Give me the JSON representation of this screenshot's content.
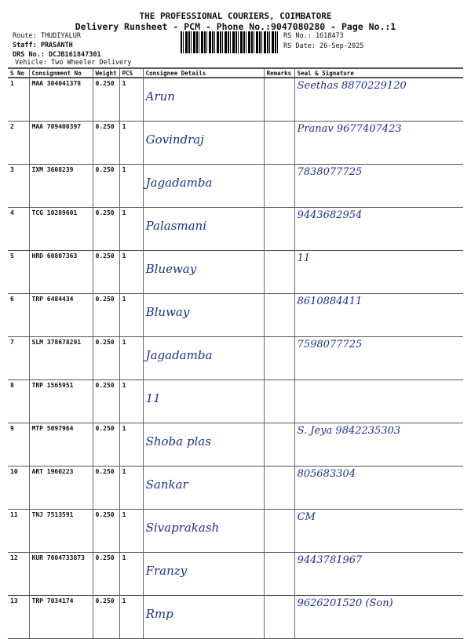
{
  "header": {
    "company": "THE PROFESSIONAL COURIERS, COIMBATORE",
    "subtitle": "Delivery Runsheet - PCM - Phone No.:9047080280 - Page No.:1",
    "route": "Route: THUDIYALUR",
    "staff": "Staff: PRASANTH",
    "drs_no": "DRS No.: DCJB161847301",
    "vehicle": "Vehicle: Two Wheeler Delivery",
    "rs_no": "RS No.: 1618473",
    "rs_date": "RS Date: 26-Sep-2025"
  },
  "columns": [
    "S No",
    "Consignment No",
    "Weight",
    "PCS",
    "Consignee Details",
    "Remarks",
    "Seal & Signature"
  ],
  "rows": [
    {
      "sno": "1",
      "cn": "MAA 304041378",
      "wt": "0.250",
      "pcs": "1",
      "consignee": "Arun",
      "remarks": "",
      "sig": "Seethas 8870229120"
    },
    {
      "sno": "2",
      "cn": "MAA 709400397",
      "wt": "0.250",
      "pcs": "1",
      "consignee": "Govindraj",
      "remarks": "",
      "sig": "Pranav 9677407423"
    },
    {
      "sno": "3",
      "cn": "IXM 3608239",
      "wt": "0.250",
      "pcs": "1",
      "consignee": "Jagadamba",
      "remarks": "",
      "sig": "7838077725"
    },
    {
      "sno": "4",
      "cn": "TCG 10289601",
      "wt": "0.250",
      "pcs": "1",
      "consignee": "Palasmani",
      "remarks": "",
      "sig": "9443682954"
    },
    {
      "sno": "5",
      "cn": "HRD 60807363",
      "wt": "0.250",
      "pcs": "1",
      "consignee": "Blueway",
      "remarks": "",
      "sig": "11"
    },
    {
      "sno": "6",
      "cn": "TRP 6484434",
      "wt": "0.250",
      "pcs": "1",
      "consignee": "Bluway",
      "remarks": "",
      "sig": "8610884411"
    },
    {
      "sno": "7",
      "cn": "SLM 378678291",
      "wt": "0.250",
      "pcs": "1",
      "consignee": "Jagadamba",
      "remarks": "",
      "sig": "7598077725"
    },
    {
      "sno": "8",
      "cn": "TRP 1565951",
      "wt": "0.250",
      "pcs": "1",
      "consignee": "11",
      "remarks": "",
      "sig": ""
    },
    {
      "sno": "9",
      "cn": "MTP 5097964",
      "wt": "0.250",
      "pcs": "1",
      "consignee": "Shoba plas",
      "remarks": "",
      "sig": "S. Jeya 9842235303"
    },
    {
      "sno": "10",
      "cn": "ART 1960223",
      "wt": "0.250",
      "pcs": "1",
      "consignee": "Sankar",
      "remarks": "",
      "sig": "805683304"
    },
    {
      "sno": "11",
      "cn": "TNJ 7513591",
      "wt": "0.250",
      "pcs": "1",
      "consignee": "Sivaprakash",
      "remarks": "",
      "sig": "CM"
    },
    {
      "sno": "12",
      "cn": "KUR 7004733873",
      "wt": "0.250",
      "pcs": "1",
      "consignee": "Franzy",
      "remarks": "",
      "sig": "9443781967"
    },
    {
      "sno": "13",
      "cn": "TRP 7034174",
      "wt": "0.250",
      "pcs": "1",
      "consignee": "Rmp",
      "remarks": "",
      "sig": "9626201520 (Son)"
    }
  ]
}
